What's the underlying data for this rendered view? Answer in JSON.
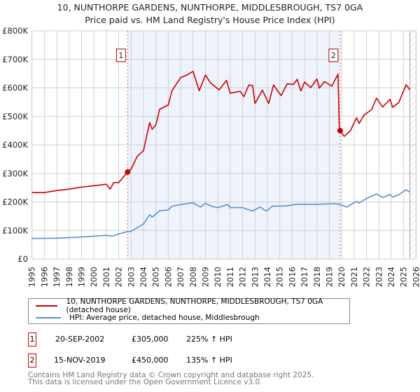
{
  "title": "10, NUNTHORPE GARDENS, NUNTHORPE, MIDDLESBROUGH, TS7 0GA",
  "subtitle": "Price paid vs. HM Land Registry's House Price Index (HPI)",
  "chart_data": {
    "type": "line",
    "title": "10, NUNTHORPE GARDENS, NUNTHORPE, MIDDLESBROUGH, TS7 0GA",
    "subtitle": "Price paid vs. HM Land Registry's House Price Index (HPI)",
    "xlabel": "",
    "ylabel": "",
    "xlim": [
      1995,
      2026
    ],
    "ylim": [
      0,
      800000
    ],
    "y_ticks": [
      0,
      100000,
      200000,
      300000,
      400000,
      500000,
      600000,
      700000,
      800000
    ],
    "y_tick_labels": [
      "£0",
      "£100K",
      "£200K",
      "£300K",
      "£400K",
      "£500K",
      "£600K",
      "£700K",
      "£800K"
    ],
    "x_ticks": [
      1995,
      1996,
      1997,
      1998,
      1999,
      2000,
      2001,
      2002,
      2003,
      2004,
      2005,
      2006,
      2007,
      2008,
      2009,
      2010,
      2011,
      2012,
      2013,
      2014,
      2015,
      2016,
      2017,
      2018,
      2019,
      2020,
      2021,
      2022,
      2023,
      2024,
      2025,
      2026
    ],
    "grid": true,
    "data_end": 2025.5,
    "shaded_range": [
      2002.72,
      2019.87
    ],
    "series": [
      {
        "name": "10, NUNTHORPE GARDENS, NUNTHORPE, MIDDLESBROUGH, TS7 0GA (detached house)",
        "color": "#cc0000",
        "x": [
          1995,
          1996,
          1997,
          1998,
          1999,
          2000,
          2001,
          2001.3,
          2001.6,
          2002,
          2002.72,
          2003,
          2003.5,
          2004,
          2004.5,
          2004.7,
          2005,
          2005.3,
          2006,
          2006.3,
          2007,
          2007.5,
          2008,
          2008.5,
          2009,
          2009.4,
          2010.1,
          2010.7,
          2011,
          2011.8,
          2012.1,
          2012.5,
          2012.8,
          2013,
          2013.6,
          2014.1,
          2014.5,
          2015.1,
          2015.6,
          2016.1,
          2016.4,
          2016.7,
          2017,
          2017.5,
          2018,
          2018.2,
          2018.6,
          2019.2,
          2019.7,
          2019.8,
          2019.87,
          2020.2,
          2020.7,
          2021.2,
          2021.4,
          2021.8,
          2022.4,
          2022.8,
          2023.3,
          2023.9,
          2024.1,
          2024.6,
          2025.2,
          2025.5
        ],
        "y": [
          233000,
          233000,
          240000,
          245000,
          252000,
          257000,
          262000,
          245000,
          268000,
          268000,
          305000,
          315000,
          360000,
          380000,
          478000,
          455000,
          470000,
          525000,
          540000,
          590000,
          636000,
          645000,
          658000,
          590000,
          645000,
          618000,
          593000,
          626000,
          581000,
          588000,
          569000,
          610000,
          608000,
          545000,
          592000,
          545000,
          610000,
          573000,
          614000,
          612000,
          630000,
          589000,
          620000,
          601000,
          631000,
          599000,
          622000,
          606000,
          648000,
          460000,
          450000,
          430000,
          450000,
          495000,
          475000,
          505000,
          523000,
          564000,
          533000,
          560000,
          532000,
          548000,
          611000,
          593000
        ]
      },
      {
        "name": "HPI: Average price, detached house, Middlesbrough",
        "color": "#5b8fd0",
        "x": [
          1995,
          1997,
          1999,
          2001,
          2001.5,
          2002,
          2002.72,
          2003,
          2004,
          2004.5,
          2004.7,
          2005.3,
          2006,
          2006.3,
          2007,
          2008,
          2008.6,
          2009,
          2009.5,
          2010,
          2010.8,
          2011,
          2012,
          2012.8,
          2013.4,
          2013.9,
          2014.4,
          2015.5,
          2016.4,
          2017.9,
          2019.5,
          2019.8,
          2020.4,
          2021.2,
          2021.4,
          2022,
          2022.8,
          2023.3,
          2023.9,
          2024.1,
          2024.6,
          2025.2,
          2025.5
        ],
        "y": [
          72000,
          73000,
          77000,
          83000,
          80000,
          88000,
          96000,
          97000,
          123000,
          155000,
          147000,
          169000,
          172000,
          185000,
          191000,
          197000,
          182000,
          195000,
          185000,
          180000,
          191000,
          180000,
          180000,
          168000,
          182000,
          168000,
          185000,
          186000,
          192000,
          192000,
          194000,
          192000,
          182000,
          202000,
          196000,
          212000,
          228000,
          216000,
          226000,
          217000,
          225000,
          243000,
          234000
        ]
      }
    ],
    "annotations": [
      {
        "label": "1",
        "x": 2002.72,
        "y": 305000
      },
      {
        "label": "2",
        "x": 2019.87,
        "y": 450000
      }
    ]
  },
  "legend": {
    "items": [
      {
        "label": "10, NUNTHORPE GARDENS, NUNTHORPE, MIDDLESBROUGH, TS7 0GA (detached house)",
        "color": "#cc0000"
      },
      {
        "label": "HPI: Average price, detached house, Middlesbrough",
        "color": "#5b8fd0"
      }
    ]
  },
  "transactions": [
    {
      "num": "1",
      "date": "20-SEP-2002",
      "price": "£305,000",
      "hpi": "225% ↑ HPI"
    },
    {
      "num": "2",
      "date": "15-NOV-2019",
      "price": "£450,000",
      "hpi": "135% ↑ HPI"
    }
  ],
  "footer": {
    "line1": "Contains HM Land Registry data © Crown copyright and database right 2025.",
    "line2": "This data is licensed under the Open Government Licence v3.0."
  }
}
